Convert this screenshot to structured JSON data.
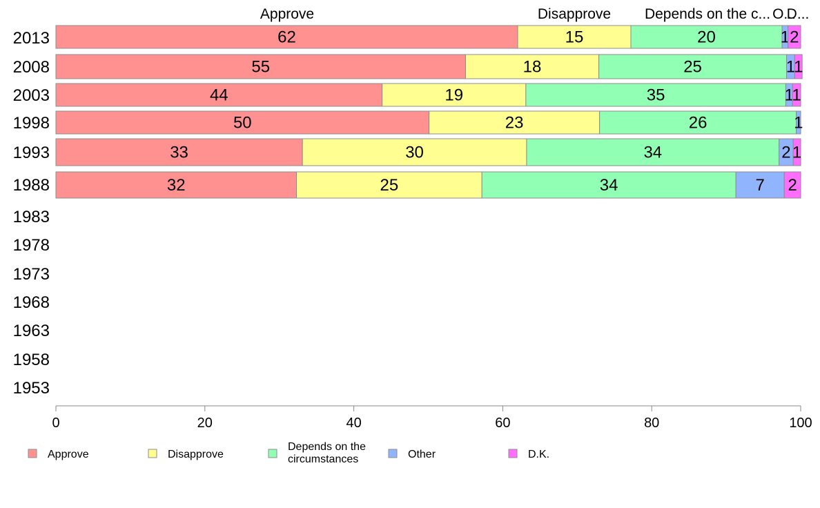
{
  "chart_data": {
    "type": "bar",
    "orientation": "horizontal",
    "stacked": true,
    "title": "",
    "xlabel": "",
    "ylabel": "",
    "xlim": [
      0,
      100
    ],
    "x_ticks": [
      0,
      20,
      40,
      60,
      80,
      100
    ],
    "grid": false,
    "legend_position": "bottom",
    "categories": [
      "2013",
      "2008",
      "2003",
      "1998",
      "1993",
      "1988",
      "1983",
      "1978",
      "1973",
      "1968",
      "1963",
      "1958",
      "1953"
    ],
    "top_labels": [
      "Approve",
      "Disapprove",
      "Depends on the c...",
      "O...",
      "D..."
    ],
    "series": [
      {
        "name": "Approve",
        "color": "#ff9191",
        "values": [
          62,
          55,
          44,
          50,
          33,
          32,
          null,
          null,
          null,
          null,
          null,
          null,
          null
        ]
      },
      {
        "name": "Disapprove",
        "color": "#ffff91",
        "values": [
          15,
          18,
          19,
          23,
          30,
          25,
          null,
          null,
          null,
          null,
          null,
          null,
          null
        ]
      },
      {
        "name": "Depends on the circumstances",
        "color": "#91ffb4",
        "values": [
          20,
          25,
          35,
          26,
          34,
          34,
          null,
          null,
          null,
          null,
          null,
          null,
          null
        ]
      },
      {
        "name": "Other",
        "color": "#91b4ff",
        "values": [
          1,
          1,
          1,
          1,
          2,
          7,
          null,
          null,
          null,
          null,
          null,
          null,
          null
        ]
      },
      {
        "name": "D.K.",
        "color": "#ff6eff",
        "values": [
          2,
          1,
          1,
          null,
          1,
          2,
          null,
          null,
          null,
          null,
          null,
          null,
          null
        ]
      }
    ],
    "plotted_shares": [
      [
        62,
        15.2,
        20.3,
        0.8,
        1.7
      ],
      [
        55,
        17.9,
        25.2,
        1.1,
        1.0
      ],
      [
        43.8,
        19.3,
        34.9,
        0.9,
        1.1
      ],
      [
        50.1,
        22.9,
        26.4,
        0.6,
        0
      ],
      [
        33.1,
        30.1,
        33.9,
        1.9,
        1.0
      ],
      [
        32.3,
        24.9,
        34.1,
        6.5,
        2.2
      ]
    ]
  }
}
